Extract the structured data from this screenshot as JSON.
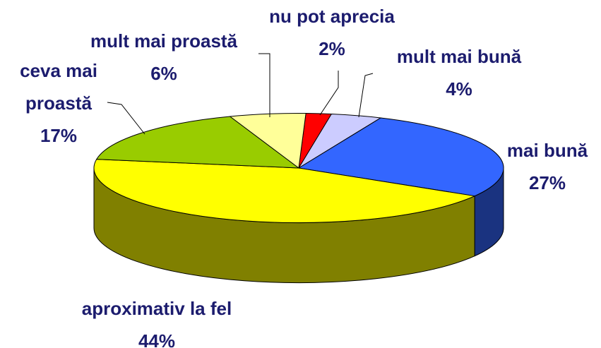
{
  "chart_data": {
    "type": "pie",
    "categories": [
      "nu pot aprecia",
      "mult mai bună",
      "mai bună",
      "aproximativ la fel",
      "ceva mai proastă",
      "mult mai proastă"
    ],
    "values": [
      2,
      4,
      27,
      44,
      17,
      6
    ],
    "value_labels": [
      "2%",
      "4%",
      "27%",
      "44%",
      "17%",
      "6%"
    ],
    "colors": [
      "#ff0000",
      "#ccccff",
      "#3366ff",
      "#ffff00",
      "#99cc00",
      "#ffff99"
    ]
  }
}
